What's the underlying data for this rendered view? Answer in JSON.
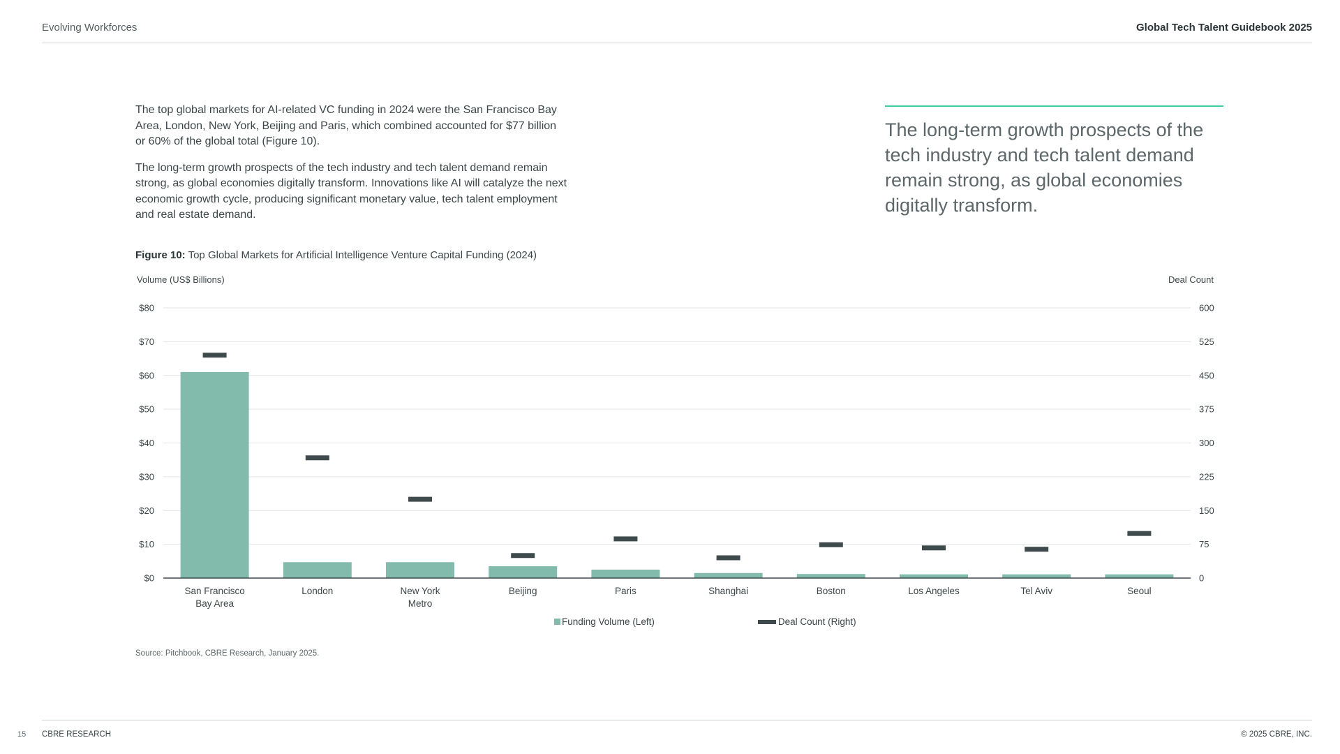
{
  "header": {
    "section": "Evolving Workforces",
    "publication": "Global Tech Talent Guidebook 2025"
  },
  "body": {
    "paragraph_1": "The top global markets for AI-related VC funding in 2024 were the San Francisco Bay Area, London, New York, Beijing and Paris, which combined accounted for $77 billion or 60% of the global total (Figure 10).",
    "paragraph_2": "The long-term growth prospects of the tech industry and tech talent demand remain strong, as global economies digitally transform. Innovations like AI will catalyze the next economic growth cycle, producing significant monetary value, tech talent employment and real estate demand."
  },
  "pull_quote": "The long-term growth prospects of the tech industry and tech talent demand remain strong, as global economies digitally transform.",
  "figure": {
    "label": "Figure 10:",
    "caption": "Top Global Markets for Artificial Intelligence Venture Capital Funding (2024)",
    "source": "Source: Pitchbook, CBRE Research, January 2025."
  },
  "colors": {
    "funding_bar": "#82bbac",
    "deal_marker": "#3e4a4c",
    "accent_rule": "#3ecfa0",
    "gridline": "#e2e6e6"
  },
  "chart_data": {
    "type": "bar",
    "title": "Top Global Markets for Artificial Intelligence Venture Capital Funding (2024)",
    "categories": [
      [
        "San Francisco",
        "Bay Area"
      ],
      [
        "London"
      ],
      [
        "New York",
        "Metro"
      ],
      [
        "Beijing"
      ],
      [
        "Paris"
      ],
      [
        "Shanghai"
      ],
      [
        "Boston"
      ],
      [
        "Los Angeles"
      ],
      [
        "Tel Aviv"
      ],
      [
        "Seoul"
      ]
    ],
    "ylabel_left": "Volume (US$ Billions)",
    "ylabel_right": "Deal Count",
    "ylim_left": [
      0,
      80
    ],
    "ylim_right": [
      0,
      600
    ],
    "yticks_left": [
      "$0",
      "$10",
      "$20",
      "$30",
      "$40",
      "$50",
      "$60",
      "$70",
      "$80"
    ],
    "yticks_right": [
      "0",
      "75",
      "150",
      "225",
      "300",
      "375",
      "450",
      "525",
      "600"
    ],
    "grid": true,
    "legend_position": "bottom",
    "series": [
      {
        "name": "Funding Volume (Left)",
        "type": "bar",
        "axis": "left",
        "values": [
          61,
          4.7,
          4.7,
          3.5,
          2.5,
          1.5,
          1.2,
          1.1,
          1.1,
          1.1
        ]
      },
      {
        "name": "Deal Count (Right)",
        "type": "marker",
        "axis": "right",
        "values": [
          495,
          267,
          175,
          50,
          87,
          45,
          74,
          67,
          64,
          99
        ]
      }
    ]
  },
  "footer": {
    "page_number": "15",
    "brand": "CBRE RESEARCH",
    "copyright": "© 2025 CBRE, INC."
  }
}
